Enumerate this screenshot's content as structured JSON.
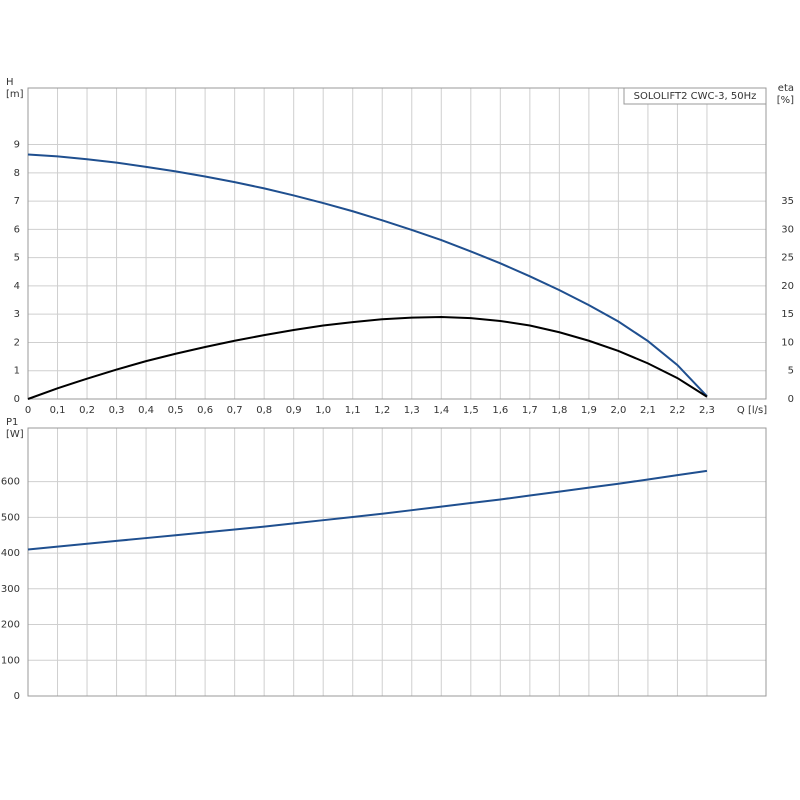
{
  "chart_data": [
    {
      "type": "line",
      "title": "SOLOLIFT2 CWC-3, 50Hz",
      "ylabel": [
        "H",
        "[m]"
      ],
      "y2label": [
        "eta",
        "[%]"
      ],
      "xlabel": "Q [l/s]",
      "x": [
        0,
        0.1,
        0.2,
        0.3,
        0.4,
        0.5,
        0.6,
        0.7,
        0.8,
        0.9,
        1.0,
        1.1,
        1.2,
        1.3,
        1.4,
        1.5,
        1.6,
        1.7,
        1.8,
        1.9,
        2.0,
        2.1,
        2.2,
        2.3
      ],
      "series": [
        {
          "color": "#1f4f8f",
          "axis": "y",
          "values": [
            8.65,
            8.58,
            8.48,
            8.36,
            8.21,
            8.05,
            7.87,
            7.67,
            7.45,
            7.2,
            6.93,
            6.64,
            6.32,
            5.98,
            5.62,
            5.22,
            4.8,
            4.34,
            3.85,
            3.32,
            2.74,
            2.05,
            1.2,
            0.1
          ]
        },
        {
          "color": "#000000",
          "axis": "y2",
          "values": [
            0,
            1.9,
            3.6,
            5.2,
            6.7,
            8.0,
            9.2,
            10.3,
            11.3,
            12.2,
            13.0,
            13.6,
            14.1,
            14.4,
            14.5,
            14.3,
            13.8,
            13.0,
            11.8,
            10.3,
            8.5,
            6.3,
            3.7,
            0.4
          ]
        }
      ],
      "xlim": [
        0,
        2.5
      ],
      "xticks": [
        0,
        {
          "value": 0.1,
          "label": "0,1"
        },
        {
          "value": 0.2,
          "label": "0,2"
        },
        {
          "value": 0.3,
          "label": "0,3"
        },
        {
          "value": 0.4,
          "label": "0,4"
        },
        {
          "value": 0.5,
          "label": "0,5"
        },
        {
          "value": 0.6,
          "label": "0,6"
        },
        {
          "value": 0.7,
          "label": "0,7"
        },
        {
          "value": 0.8,
          "label": "0,8"
        },
        {
          "value": 0.9,
          "label": "0,9"
        },
        {
          "value": 1.0,
          "label": "1,0"
        },
        {
          "value": 1.1,
          "label": "1,1"
        },
        {
          "value": 1.2,
          "label": "1,2"
        },
        {
          "value": 1.3,
          "label": "1,3"
        },
        {
          "value": 1.4,
          "label": "1,4"
        },
        {
          "value": 1.5,
          "label": "1,5"
        },
        {
          "value": 1.6,
          "label": "1,6"
        },
        {
          "value": 1.7,
          "label": "1,7"
        },
        {
          "value": 1.8,
          "label": "1,8"
        },
        {
          "value": 1.9,
          "label": "1,9"
        },
        {
          "value": 2.0,
          "label": "2,0"
        },
        {
          "value": 2.1,
          "label": "2,1"
        },
        {
          "value": 2.2,
          "label": "2,2"
        },
        {
          "value": 2.3,
          "label": "2,3"
        }
      ],
      "ylim": [
        0,
        11
      ],
      "yticks": [
        0,
        1,
        2,
        3,
        4,
        5,
        6,
        7,
        8,
        9
      ],
      "y2lim": [
        0,
        55
      ],
      "y2ticks": [
        0,
        5,
        10,
        15,
        20,
        25,
        30,
        35
      ],
      "grid": true
    },
    {
      "type": "line",
      "ylabel": [
        "P1",
        "[W]"
      ],
      "x": [
        0,
        0.1,
        0.2,
        0.3,
        0.4,
        0.5,
        0.6,
        0.7,
        0.8,
        0.9,
        1.0,
        1.1,
        1.2,
        1.3,
        1.4,
        1.5,
        1.6,
        1.7,
        1.8,
        1.9,
        2.0,
        2.1,
        2.2,
        2.3
      ],
      "series": [
        {
          "color": "#1f4f8f",
          "values": [
            410,
            418,
            426,
            434,
            442,
            450,
            458,
            466,
            474,
            483,
            492,
            501,
            510,
            520,
            530,
            540,
            550,
            561,
            572,
            583,
            594,
            606,
            618,
            630
          ]
        }
      ],
      "xlim": [
        0,
        2.5
      ],
      "ylim": [
        0,
        750
      ],
      "yticks": [
        0,
        100,
        200,
        300,
        400,
        500,
        600
      ],
      "grid": true
    }
  ]
}
